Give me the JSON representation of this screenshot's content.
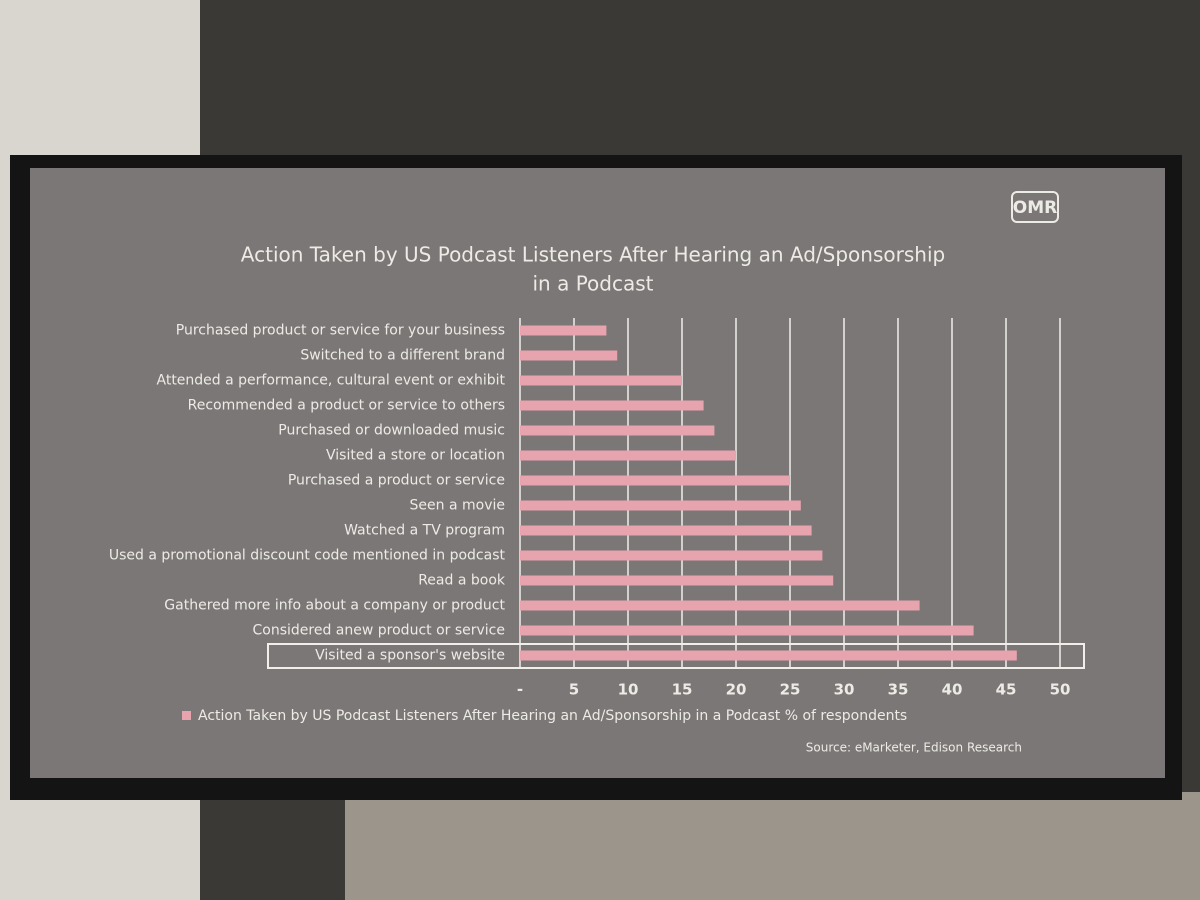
{
  "chart_data": {
    "type": "bar",
    "orientation": "horizontal",
    "logo": "OMR",
    "title": [
      "Action Taken by US Podcast Listeners After Hearing an Ad/Sponsorship",
      "in a Podcast"
    ],
    "categories": [
      "Purchased product or service for your business",
      "Switched to a different brand",
      "Attended a performance, cultural event or exhibit",
      "Recommended a product or service to others",
      "Purchased or downloaded music",
      "Visited a store or location",
      "Purchased a product or service",
      "Seen a movie",
      "Watched a TV program",
      "Used a promotional discount code mentioned in podcast",
      "Read a book",
      "Gathered more info about a company or product",
      "Considered anew product or service",
      "Visited a sponsor's website"
    ],
    "series": [
      {
        "name": "Action Taken by US Podcast Listeners After Hearing an Ad/Sponsorship in a Podcast % of respondents",
        "color": "#e7a3ae",
        "values": [
          8,
          9,
          15,
          17,
          18,
          20,
          25,
          26,
          27,
          28,
          29,
          37,
          42,
          46
        ]
      }
    ],
    "xlim": [
      0,
      50
    ],
    "xticks": [
      {
        "value": 0,
        "label": "-"
      },
      5,
      10,
      15,
      20,
      25,
      30,
      35,
      40,
      45,
      50
    ],
    "grid": true,
    "legend": "bottom",
    "source": "Source: eMarketer, Edison Research"
  }
}
